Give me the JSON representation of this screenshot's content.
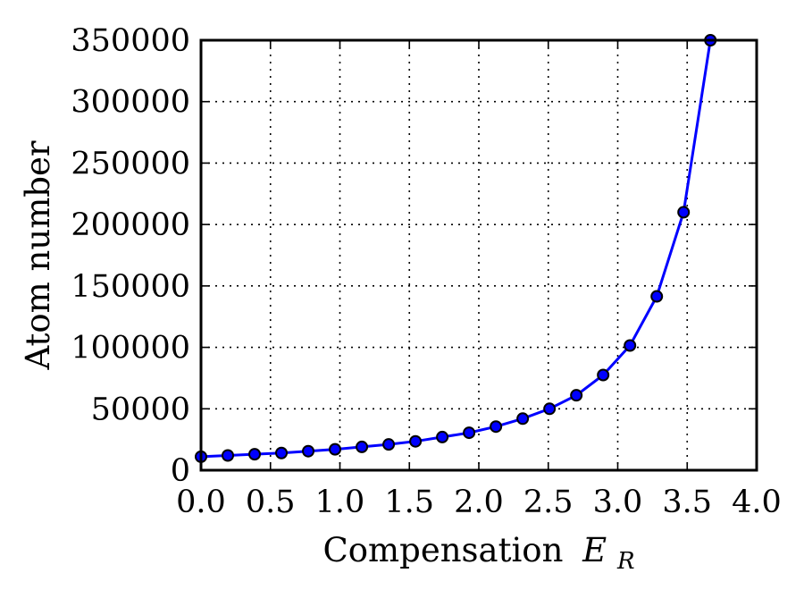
{
  "chart_data": {
    "type": "line",
    "title": "",
    "xlabel": "Compensation",
    "xlabel_symbol": "E",
    "xlabel_subscript": "R",
    "ylabel": "Atom number",
    "xlim": [
      0.0,
      4.0
    ],
    "ylim": [
      0,
      350000
    ],
    "xticks": [
      "0.0",
      "0.5",
      "1.0",
      "1.5",
      "2.0",
      "2.5",
      "3.0",
      "3.5",
      "4.0"
    ],
    "yticks": [
      "0",
      "50000",
      "100000",
      "150000",
      "200000",
      "250000",
      "300000",
      "350000"
    ],
    "grid": true,
    "series": [
      {
        "color": "#0000ff",
        "marker_color": "#0000ff",
        "x": [
          0.0,
          0.193,
          0.386,
          0.579,
          0.772,
          0.965,
          1.158,
          1.351,
          1.544,
          1.737,
          1.93,
          2.123,
          2.316,
          2.509,
          2.702,
          2.895,
          3.088,
          3.281,
          3.474,
          3.667
        ],
        "y": [
          11000,
          12000,
          13000,
          14000,
          15500,
          17000,
          19000,
          21000,
          23500,
          27000,
          30500,
          35500,
          42000,
          50000,
          61000,
          77500,
          101500,
          141500,
          210000,
          350000
        ]
      }
    ]
  }
}
